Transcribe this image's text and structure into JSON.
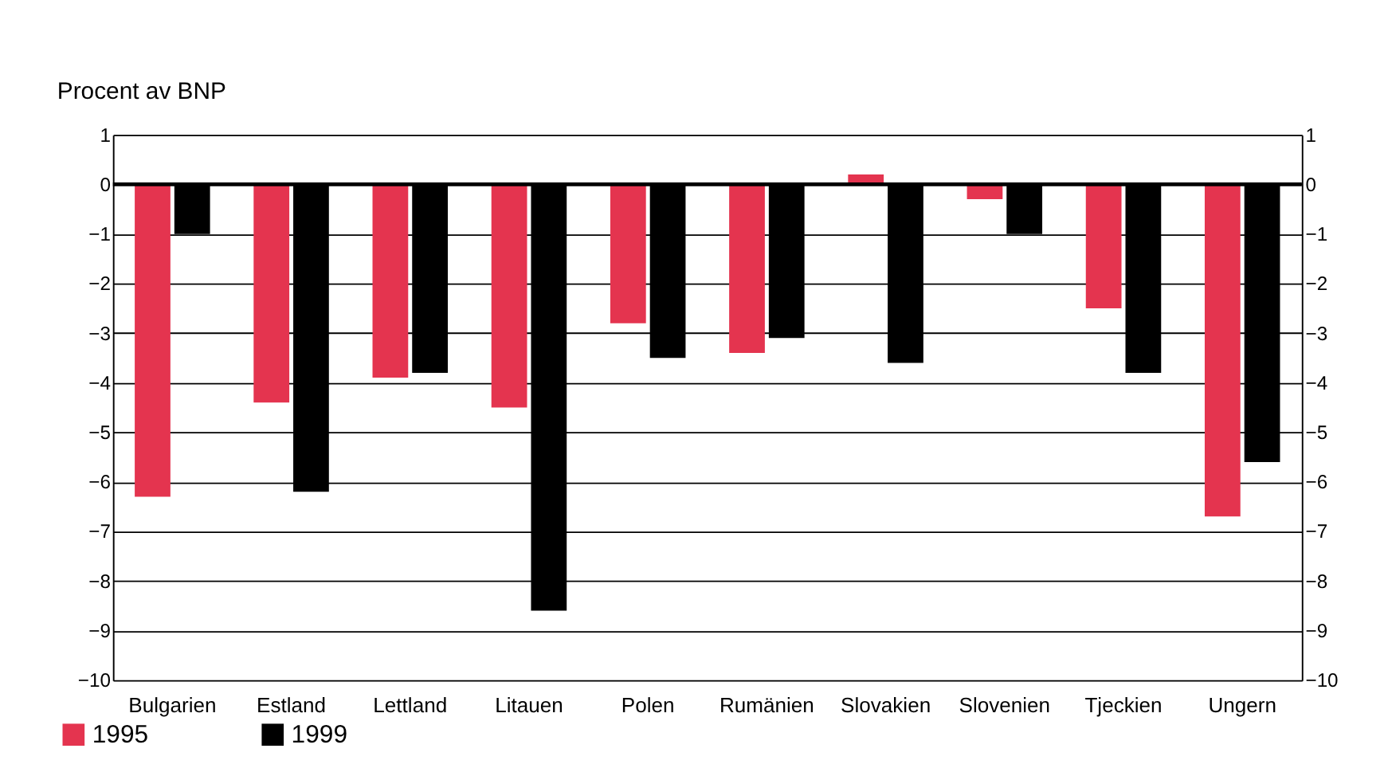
{
  "chart_data": {
    "type": "bar",
    "ylabel": "Procent av BNP",
    "categories": [
      "Bulgarien",
      "Estland",
      "Lettland",
      "Litauen",
      "Polen",
      "Rumänien",
      "Slovakien",
      "Slovenien",
      "Tjeckien",
      "Ungern"
    ],
    "series": [
      {
        "name": "1995",
        "color": "#e4344f",
        "values": [
          -6.3,
          -4.4,
          -3.9,
          -4.5,
          -2.8,
          -3.4,
          0.2,
          -0.3,
          -2.5,
          -6.7
        ]
      },
      {
        "name": "1999",
        "color": "#000000",
        "values": [
          -1.0,
          -6.2,
          -3.8,
          -8.6,
          -3.5,
          -3.1,
          -3.6,
          -1.0,
          -3.8,
          -5.6
        ]
      }
    ],
    "ylim": [
      -10,
      1
    ],
    "yticks": [
      -10,
      -9,
      -8,
      -7,
      -6,
      -5,
      -4,
      -3,
      -2,
      -1,
      0,
      1
    ],
    "y2lim": [
      -10,
      1
    ],
    "y2ticks": [
      -10,
      -9,
      -8,
      -7,
      -6,
      -5,
      -4,
      -3,
      -2,
      -1,
      0,
      1
    ],
    "grid": "y",
    "legend": "bottom left"
  }
}
